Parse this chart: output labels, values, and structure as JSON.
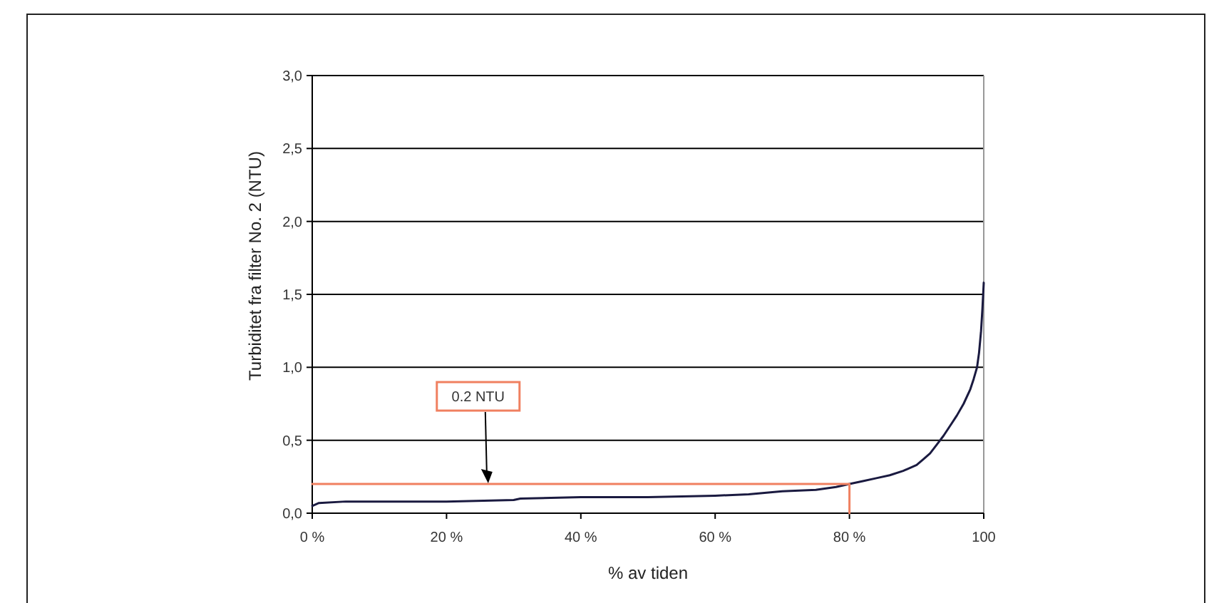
{
  "chart_data": {
    "type": "line",
    "xlabel": "% av tiden",
    "ylabel": "Turbiditet fra filter No. 2 (NTU)",
    "xlim": [
      0,
      100
    ],
    "xticks": [
      {
        "value": 0,
        "label": "0 %"
      },
      {
        "value": 20,
        "label": "20 %"
      },
      {
        "value": 40,
        "label": "40 %"
      },
      {
        "value": 60,
        "label": "60 %"
      },
      {
        "value": 80,
        "label": "80 %"
      },
      {
        "value": 100,
        "label": "100"
      }
    ],
    "ylim": [
      0,
      3
    ],
    "yticks": [
      {
        "value": 0,
        "label": "0,0"
      },
      {
        "value": 0.5,
        "label": "0,5"
      },
      {
        "value": 1,
        "label": "1,0"
      },
      {
        "value": 1.5,
        "label": "1,5"
      },
      {
        "value": 2,
        "label": "2,0"
      },
      {
        "value": 2.5,
        "label": "2,5"
      },
      {
        "value": 3,
        "label": "3,0"
      }
    ],
    "grid": "y",
    "series": [
      {
        "color": "#1a1a40",
        "x": [
          0,
          1,
          5,
          10,
          20,
          30,
          31,
          40,
          50,
          60,
          65,
          70,
          75,
          78,
          80,
          82,
          84,
          86,
          88,
          90,
          91,
          92,
          93,
          94,
          95,
          96,
          97,
          98,
          98.5,
          99,
          99.3,
          99.6,
          99.8,
          100
        ],
        "values": [
          0.05,
          0.07,
          0.08,
          0.08,
          0.08,
          0.09,
          0.1,
          0.11,
          0.11,
          0.12,
          0.13,
          0.15,
          0.16,
          0.18,
          0.2,
          0.22,
          0.24,
          0.26,
          0.29,
          0.33,
          0.37,
          0.41,
          0.47,
          0.53,
          0.6,
          0.67,
          0.75,
          0.85,
          0.92,
          1.0,
          1.1,
          1.25,
          1.4,
          1.58
        ]
      },
      {
        "color": "#f08060",
        "x": [
          0,
          80,
          80
        ],
        "values": [
          0.2,
          0.2,
          0
        ]
      }
    ],
    "annotations": [
      "0.2 NTU"
    ]
  }
}
